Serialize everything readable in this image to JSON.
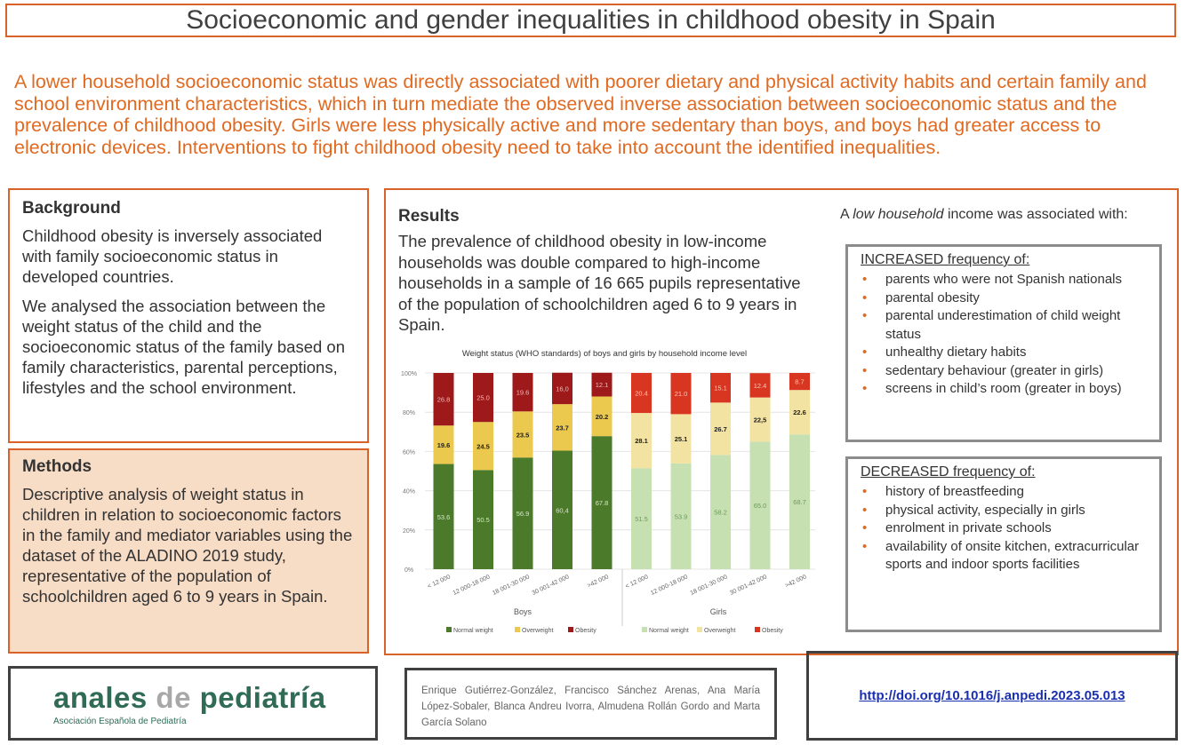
{
  "title": "Socioeconomic and gender inequalities in childhood obesity in Spain",
  "summary": "A lower household socioeconomic status was directly associated with poorer dietary and physical activity habits and certain family and school environment characteristics, which in turn mediate the observed inverse association between socioeconomic status and the prevalence of childhood obesity. Girls were less physically active and more sedentary than boys, and boys had greater access to electronic devices. Interventions to fight childhood obesity need to take into account the identified inequalities.",
  "background": {
    "heading": "Background",
    "paragraphs": [
      "Childhood obesity is inversely associated with family socioeconomic status in developed countries.",
      "We analysed the association between the weight status of the child and the socioeconomic status of the family based on family characteristics, parental perceptions, lifestyles and the school environment."
    ]
  },
  "methods": {
    "heading": "Methods",
    "text": "Descriptive analysis of weight status in children in relation to socioeconomic factors in the family and mediator variables using the dataset of the ALADINO 2019 study, representative of the population of schoolchildren aged 6 to 9 years in Spain."
  },
  "results": {
    "heading": "Results",
    "text": "The prevalence of childhood obesity in low-income households was double compared to high-income households in a sample of 16 665 pupils representative of the population of schoolchildren aged 6 to 9 years in Spain.",
    "low_income_prefix": "A ",
    "low_income_em": "low household",
    "low_income_suffix": " income was associated with:",
    "increased": {
      "heading": "INCREASED frequency of:",
      "items": [
        "parents who were not Spanish nationals",
        "parental obesity",
        "parental underestimation of child weight status",
        "unhealthy dietary habits",
        "sedentary behaviour (greater in girls)",
        "screens in child’s room (greater in boys)"
      ]
    },
    "decreased": {
      "heading": "DECREASED frequency of:",
      "items": [
        "history of breastfeeding",
        "physical activity, especially in girls",
        "enrolment in private schools",
        "availability of onsite kitchen, extracurricular sports and indoor sports facilities"
      ]
    }
  },
  "chart_data": {
    "type": "bar",
    "stacked": true,
    "title": "Weight status (WHO standards) of boys and girls by household income level",
    "ylim": [
      0,
      100
    ],
    "yticks": [
      "0%",
      "20%",
      "40%",
      "60%",
      "80%",
      "100%"
    ],
    "grid": true,
    "legend_position": "bottom",
    "groups": [
      {
        "name": "Boys",
        "categories": [
          "< 12 000",
          "12 000-18 000",
          "18 001-30 000",
          "30 001-42 000",
          ">42 000"
        ],
        "series": [
          {
            "name": "Normal weight",
            "color": "#4a7a2a",
            "label_color": "#d8e8c8",
            "values": [
              53.6,
              50.5,
              56.9,
              60.4,
              67.8
            ],
            "labels": [
              "53.6",
              "50.5",
              "56.9",
              "60,4",
              "67.8"
            ]
          },
          {
            "name": "Overweight",
            "color": "#ebc94e",
            "label_color": "#222",
            "values": [
              19.6,
              24.5,
              23.5,
              23.7,
              20.2
            ],
            "labels": [
              "19.6",
              "24.5",
              "23.5",
              "23.7",
              "20.2"
            ]
          },
          {
            "name": "Obesity",
            "color": "#9e1a1a",
            "label_color": "#f2b8b8",
            "values": [
              26.8,
              25.0,
              19.6,
              16.0,
              12.1
            ],
            "labels": [
              "26.8",
              "25.0",
              "19.6",
              "16,0",
              "12.1"
            ]
          }
        ]
      },
      {
        "name": "Girls",
        "categories": [
          "< 12 000",
          "12 000-18 000",
          "18 001-30 000",
          "30 001-42 000",
          ">42 000"
        ],
        "series": [
          {
            "name": "Normal weight",
            "color": "#c6e0b2",
            "label_color": "#6f9a5a",
            "values": [
              51.5,
              53.9,
              58.2,
              65.0,
              68.7
            ],
            "labels": [
              "51.5",
              "53.9",
              "58.2",
              "65.0",
              "68.7"
            ]
          },
          {
            "name": "Overweight",
            "color": "#f3e3a2",
            "label_color": "#222",
            "values": [
              28.1,
              25.1,
              26.7,
              22.5,
              22.6
            ],
            "labels": [
              "28.1",
              "25.1",
              "26.7",
              "22,5",
              "22.6"
            ]
          },
          {
            "name": "Obesity",
            "color": "#d93622",
            "label_color": "#f6c8b8",
            "values": [
              20.4,
              21.0,
              15.1,
              12.4,
              8.7
            ],
            "labels": [
              "20.4",
              "21.0",
              "15.1",
              "12.4",
              "8.7"
            ]
          }
        ]
      }
    ]
  },
  "footer": {
    "logo_main_a": "anales ",
    "logo_main_de": "de",
    "logo_main_b": " pediatría",
    "logo_sub": "Asociación Española de Pediatría",
    "authors": "Enrique Gutiérrez-González, Francisco Sánchez Arenas, Ana María López-Sobaler, Blanca Andreu Ivorra, Almudena Rollán Gordo and Marta García Solano",
    "doi": "http://doi.org/10.1016/j.anpedi.2023.05.013"
  }
}
